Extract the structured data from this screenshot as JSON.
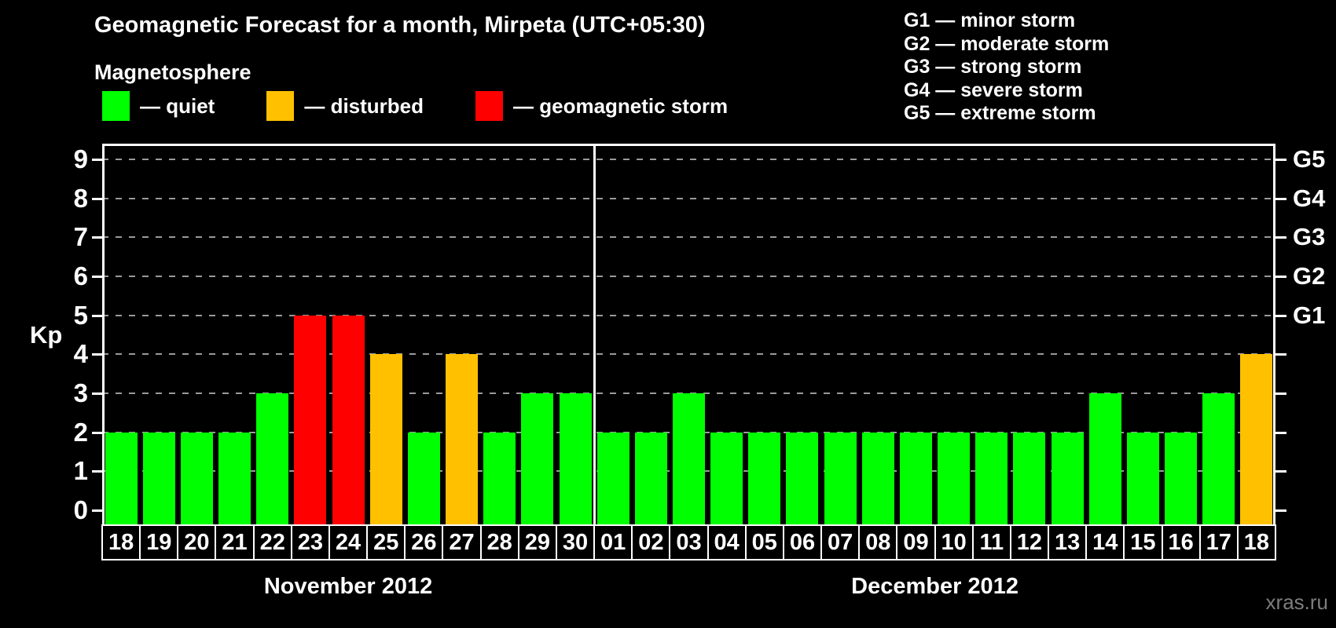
{
  "header": {
    "title": "Geomagnetic Forecast for a month, Mirpeta (UTC+05:30)",
    "subtitle": "Magnetosphere"
  },
  "magnetosphere_legend": [
    {
      "label": "— quiet",
      "color": "#00ff00"
    },
    {
      "label": "— disturbed",
      "color": "#ffc000"
    },
    {
      "label": "— geomagnetic storm",
      "color": "#ff0000"
    }
  ],
  "g_scale_legend": [
    "G1 — minor storm",
    "G2 — moderate storm",
    "G3 — strong storm",
    "G4 — severe storm",
    "G5 — extreme storm"
  ],
  "footer": {
    "watermark": "xras.ru"
  },
  "chart_data": {
    "type": "bar",
    "title": "Geomagnetic Forecast for a month, Mirpeta (UTC+05:30)",
    "xlabel": "",
    "ylabel": "Kp",
    "ylim": [
      0,
      9
    ],
    "yticks": [
      0,
      1,
      2,
      3,
      4,
      5,
      6,
      7,
      8,
      9
    ],
    "grid": "horizontal-dashed",
    "legend_position": "top-left",
    "right_axis": [
      {
        "kp": 5,
        "label": "G1"
      },
      {
        "kp": 6,
        "label": "G2"
      },
      {
        "kp": 7,
        "label": "G3"
      },
      {
        "kp": 8,
        "label": "G4"
      },
      {
        "kp": 9,
        "label": "G5"
      }
    ],
    "months": [
      {
        "label": "November 2012",
        "days": 13
      },
      {
        "label": "December 2012",
        "days": 18
      }
    ],
    "categories": [
      "18",
      "19",
      "20",
      "21",
      "22",
      "23",
      "24",
      "25",
      "26",
      "27",
      "28",
      "29",
      "30",
      "01",
      "02",
      "03",
      "04",
      "05",
      "06",
      "07",
      "08",
      "09",
      "10",
      "11",
      "12",
      "13",
      "14",
      "15",
      "16",
      "17",
      "18"
    ],
    "values": [
      2,
      2,
      2,
      2,
      3,
      5,
      5,
      4,
      2,
      4,
      2,
      3,
      3,
      2,
      2,
      3,
      2,
      2,
      2,
      2,
      2,
      2,
      2,
      2,
      2,
      2,
      3,
      2,
      2,
      3,
      4
    ],
    "statuses": [
      "quiet",
      "quiet",
      "quiet",
      "quiet",
      "quiet",
      "storm",
      "storm",
      "disturbed",
      "quiet",
      "disturbed",
      "quiet",
      "quiet",
      "quiet",
      "quiet",
      "quiet",
      "quiet",
      "quiet",
      "quiet",
      "quiet",
      "quiet",
      "quiet",
      "quiet",
      "quiet",
      "quiet",
      "quiet",
      "quiet",
      "quiet",
      "quiet",
      "quiet",
      "quiet",
      "disturbed"
    ],
    "palette": {
      "quiet": "#00ff00",
      "disturbed": "#ffc000",
      "storm": "#ff0000"
    }
  }
}
